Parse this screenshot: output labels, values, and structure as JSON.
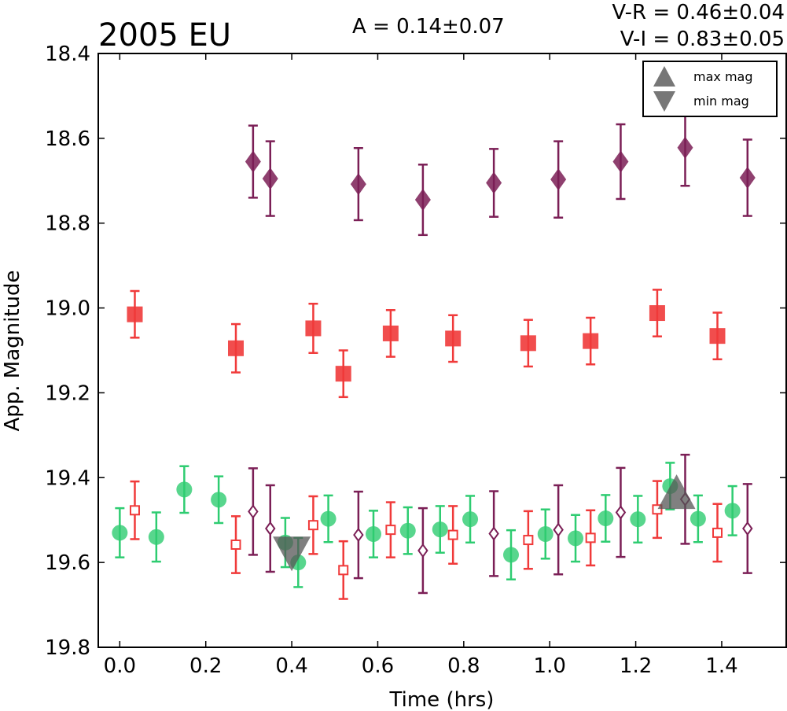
{
  "chart_data": {
    "type": "scatter",
    "title": "2005 EU",
    "annotations": {
      "amplitude": "A  = 0.14±0.07",
      "v_r": "V-R = 0.46±0.04",
      "v_i": "V-I  = 0.83±0.05"
    },
    "xlabel": "Time (hrs)",
    "ylabel": "App. Magnitude",
    "xlim": [
      -0.05,
      1.55
    ],
    "ylim": [
      18.4,
      19.8
    ],
    "y_inverted": true,
    "x_ticks": [
      "0.0",
      "0.2",
      "0.4",
      "0.6",
      "0.8",
      "1.0",
      "1.2",
      "1.4"
    ],
    "y_ticks": [
      "18.4",
      "18.6",
      "18.8",
      "19.0",
      "19.2",
      "19.4",
      "19.6",
      "19.8"
    ],
    "grid": false,
    "legend": {
      "placement": "top-right",
      "entries": [
        "max mag",
        "min mag"
      ]
    },
    "series": [
      {
        "marker": "diamond-filled",
        "color": "#7b1f56",
        "x": [
          0.31,
          0.35,
          0.555,
          0.705,
          0.87,
          1.02,
          1.165,
          1.315,
          1.46
        ],
        "y": [
          18.655,
          18.695,
          18.708,
          18.745,
          18.705,
          18.697,
          18.655,
          18.622,
          18.693
        ],
        "err": [
          0.085,
          0.088,
          0.085,
          0.083,
          0.08,
          0.09,
          0.088,
          0.09,
          0.09
        ]
      },
      {
        "marker": "square-filled",
        "color": "#f03a3a",
        "x": [
          0.035,
          0.27,
          0.45,
          0.52,
          0.63,
          0.775,
          0.95,
          1.095,
          1.25,
          1.39
        ],
        "y": [
          19.015,
          19.095,
          19.048,
          19.155,
          19.06,
          19.072,
          19.083,
          19.078,
          19.012,
          19.066
        ],
        "err": [
          0.055,
          0.057,
          0.058,
          0.055,
          0.055,
          0.055,
          0.055,
          0.055,
          0.055,
          0.055
        ]
      },
      {
        "marker": "circle-filled",
        "color": "#2ecc71",
        "x": [
          0.0,
          0.085,
          0.15,
          0.23,
          0.385,
          0.415,
          0.485,
          0.59,
          0.67,
          0.745,
          0.815,
          0.91,
          0.99,
          1.06,
          1.13,
          1.205,
          1.28,
          1.345,
          1.425
        ],
        "y": [
          19.53,
          19.54,
          19.428,
          19.452,
          19.553,
          19.6,
          19.497,
          19.533,
          19.525,
          19.522,
          19.498,
          19.582,
          19.533,
          19.543,
          19.496,
          19.498,
          19.42,
          19.497,
          19.478
        ],
        "err": [
          0.058,
          0.058,
          0.055,
          0.055,
          0.058,
          0.058,
          0.055,
          0.055,
          0.055,
          0.055,
          0.055,
          0.058,
          0.058,
          0.055,
          0.055,
          0.055,
          0.055,
          0.055,
          0.058
        ]
      },
      {
        "marker": "square-open",
        "color": "#f03a3a",
        "x": [
          0.035,
          0.27,
          0.45,
          0.52,
          0.63,
          0.775,
          0.95,
          1.095,
          1.25,
          1.39
        ],
        "y": [
          19.477,
          19.558,
          19.512,
          19.618,
          19.523,
          19.535,
          19.547,
          19.542,
          19.475,
          19.53
        ],
        "err": [
          0.068,
          0.067,
          0.068,
          0.068,
          0.065,
          0.068,
          0.068,
          0.065,
          0.067,
          0.068
        ]
      },
      {
        "marker": "diamond-open",
        "color": "#7b1f56",
        "x": [
          0.31,
          0.35,
          0.555,
          0.705,
          0.87,
          1.02,
          1.165,
          1.315,
          1.46
        ],
        "y": [
          19.48,
          19.52,
          19.535,
          19.572,
          19.532,
          19.523,
          19.482,
          19.451,
          19.52
        ],
        "err": [
          0.102,
          0.102,
          0.102,
          0.1,
          0.1,
          0.105,
          0.105,
          0.105,
          0.105
        ]
      }
    ],
    "extrema": {
      "color": "#555555",
      "max_mag": {
        "x": 1.295,
        "y": 19.448
      },
      "min_mag": {
        "x": 0.4,
        "y": 19.565
      }
    }
  }
}
